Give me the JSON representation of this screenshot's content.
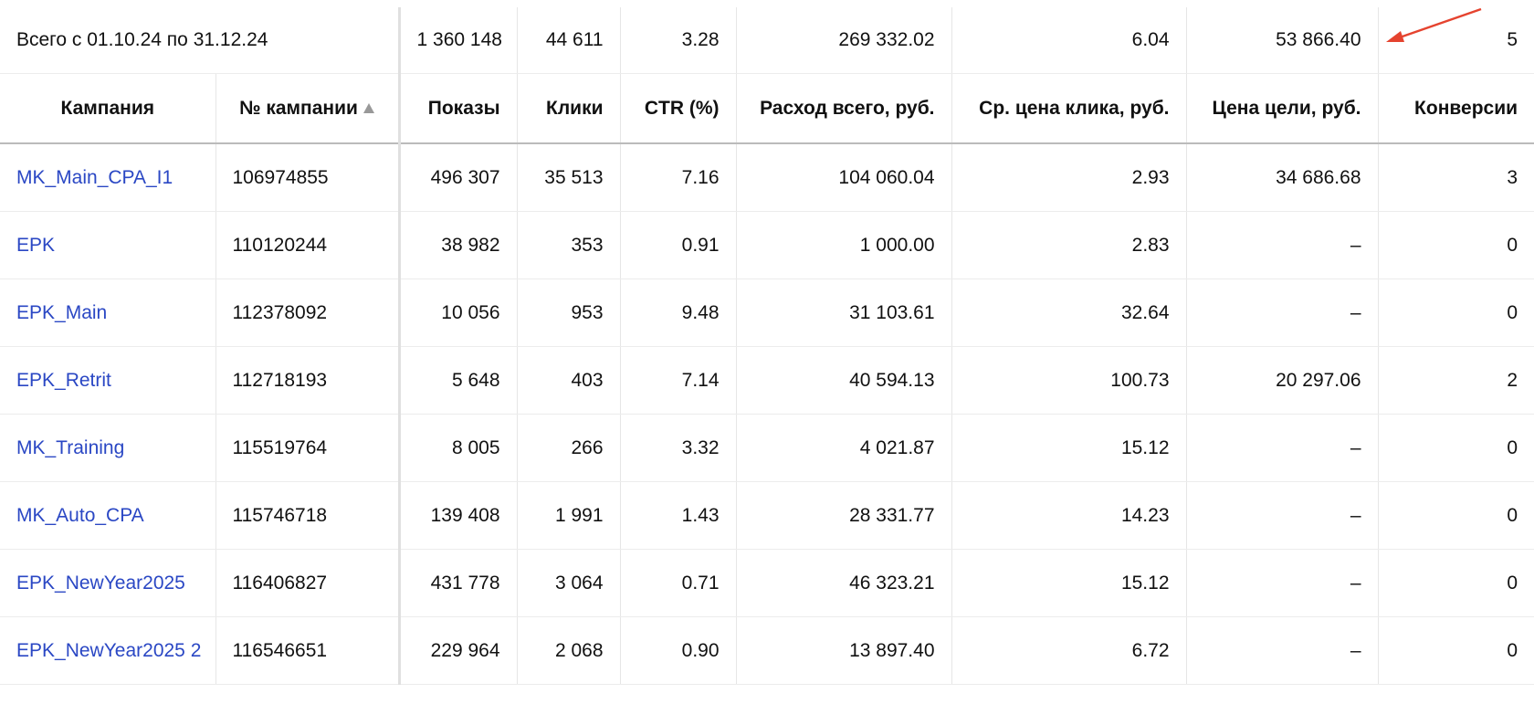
{
  "summary": {
    "label": "Всего с 01.10.24 по 31.12.24",
    "values": [
      "1 360 148",
      "44 611",
      "3.28",
      "269 332.02",
      "6.04",
      "53 866.40",
      "5"
    ]
  },
  "table": {
    "columns": [
      "Кампания",
      "№ кампании",
      "Показы",
      "Клики",
      "CTR (%)",
      "Расход всего, руб.",
      "Ср. цена клика, руб.",
      "Цена цели, руб.",
      "Конверсии"
    ],
    "rows": [
      [
        "MK_Main_CPA_I1",
        "106974855",
        "496 307",
        "35 513",
        "7.16",
        "104 060.04",
        "2.93",
        "34 686.68",
        "3"
      ],
      [
        "EPK",
        "110120244",
        "38 982",
        "353",
        "0.91",
        "1 000.00",
        "2.83",
        "–",
        "0"
      ],
      [
        "EPK_Main",
        "112378092",
        "10 056",
        "953",
        "9.48",
        "31 103.61",
        "32.64",
        "–",
        "0"
      ],
      [
        "EPK_Retrit",
        "112718193",
        "5 648",
        "403",
        "7.14",
        "40 594.13",
        "100.73",
        "20 297.06",
        "2"
      ],
      [
        "MK_Training",
        "115519764",
        "8 005",
        "266",
        "3.32",
        "4 021.87",
        "15.12",
        "–",
        "0"
      ],
      [
        "MK_Auto_CPA",
        "115746718",
        "139 408",
        "1 991",
        "1.43",
        "28 331.77",
        "14.23",
        "–",
        "0"
      ],
      [
        "EPK_NewYear2025",
        "116406827",
        "431 778",
        "3 064",
        "0.71",
        "46 323.21",
        "15.12",
        "–",
        "0"
      ],
      [
        "EPK_NewYear2025 2",
        "116546651",
        "229 964",
        "2 068",
        "0.90",
        "13 897.40",
        "6.72",
        "–",
        "0"
      ]
    ]
  }
}
